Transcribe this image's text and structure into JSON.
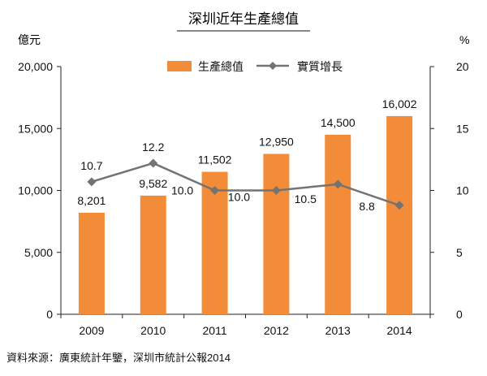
{
  "chart_data": {
    "type": "bar",
    "title": "深圳近年生產總值",
    "categories": [
      "2009",
      "2010",
      "2011",
      "2012",
      "2013",
      "2014"
    ],
    "series": [
      {
        "name": "生產總值",
        "type": "bar",
        "axis": "left",
        "unit": "億元",
        "color": "#f28c38",
        "values": [
          8201,
          9582,
          11502,
          12950,
          14500,
          16002
        ],
        "labels": [
          "8,201",
          "9,582",
          "11,502",
          "12,950",
          "14,500",
          "16,002"
        ]
      },
      {
        "name": "實質增長",
        "type": "line",
        "axis": "right",
        "unit": "%",
        "color": "#737373",
        "values": [
          10.7,
          12.2,
          10.0,
          10.0,
          10.5,
          8.8
        ],
        "labels": [
          "10.7",
          "12.2",
          "10.0",
          "10.0",
          "10.5",
          "8.8"
        ]
      }
    ],
    "y_left": {
      "label": "億元",
      "ylim": [
        0,
        20000
      ],
      "ticks": [
        0,
        5000,
        10000,
        15000,
        20000
      ],
      "tick_labels": [
        "0",
        "5,000",
        "10,000",
        "15,000",
        "20,000"
      ]
    },
    "y_right": {
      "label": "%",
      "ylim": [
        0,
        20
      ],
      "ticks": [
        0,
        5,
        10,
        15,
        20
      ],
      "tick_labels": [
        "0",
        "5",
        "10",
        "15",
        "20"
      ]
    },
    "grid": false,
    "legend_position": "top"
  },
  "source": "資料來源：廣東統計年鑒，深圳市統計公報2014"
}
